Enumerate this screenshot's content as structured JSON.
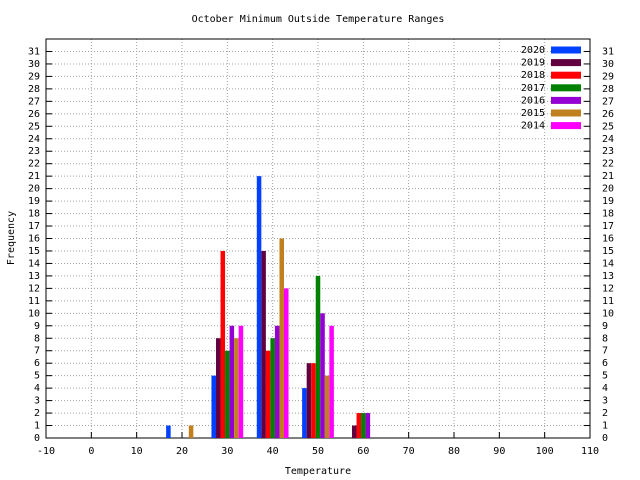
{
  "chart_data": {
    "type": "bar",
    "title": "October Minimum Outside Temperature Ranges",
    "xlabel": "Temperature",
    "ylabel": "Frequency",
    "xlim": [
      -10,
      110
    ],
    "xticks": [
      -10,
      0,
      10,
      20,
      30,
      40,
      50,
      60,
      70,
      80,
      90,
      100,
      110
    ],
    "ylim": [
      0,
      32
    ],
    "yticks": [
      0,
      1,
      2,
      3,
      4,
      5,
      6,
      7,
      8,
      9,
      10,
      11,
      12,
      13,
      14,
      15,
      16,
      17,
      18,
      19,
      20,
      21,
      22,
      23,
      24,
      25,
      26,
      27,
      28,
      29,
      30,
      31
    ],
    "y2lim": [
      0,
      32
    ],
    "y2ticks": [
      0,
      1,
      2,
      3,
      4,
      5,
      6,
      7,
      8,
      9,
      10,
      11,
      12,
      13,
      14,
      15,
      16,
      17,
      18,
      19,
      20,
      21,
      22,
      23,
      24,
      25,
      26,
      27,
      28,
      29,
      30,
      31
    ],
    "grid": true,
    "legend": "top-right",
    "series": [
      {
        "name": "2020",
        "color": "#0040ff",
        "x": [
          17,
          27,
          37,
          47
        ],
        "values": [
          1,
          5,
          21,
          4
        ]
      },
      {
        "name": "2019",
        "color": "#600040",
        "x": [
          28,
          38,
          48,
          58
        ],
        "values": [
          8,
          15,
          6,
          1
        ]
      },
      {
        "name": "2018",
        "color": "#ff0000",
        "x": [
          29,
          39,
          49,
          59
        ],
        "values": [
          15,
          7,
          6,
          2
        ]
      },
      {
        "name": "2017",
        "color": "#008000",
        "x": [
          30,
          40,
          50,
          60
        ],
        "values": [
          7,
          8,
          13,
          2
        ]
      },
      {
        "name": "2016",
        "color": "#9400d3",
        "x": [
          31,
          41,
          51,
          61
        ],
        "values": [
          9,
          9,
          10,
          2
        ]
      },
      {
        "name": "2015",
        "color": "#c08020",
        "x": [
          22,
          32,
          42,
          52
        ],
        "values": [
          1,
          8,
          16,
          5
        ]
      },
      {
        "name": "2014",
        "color": "#ff00ff",
        "x": [
          33,
          43,
          53
        ],
        "values": [
          9,
          12,
          9
        ]
      }
    ]
  }
}
